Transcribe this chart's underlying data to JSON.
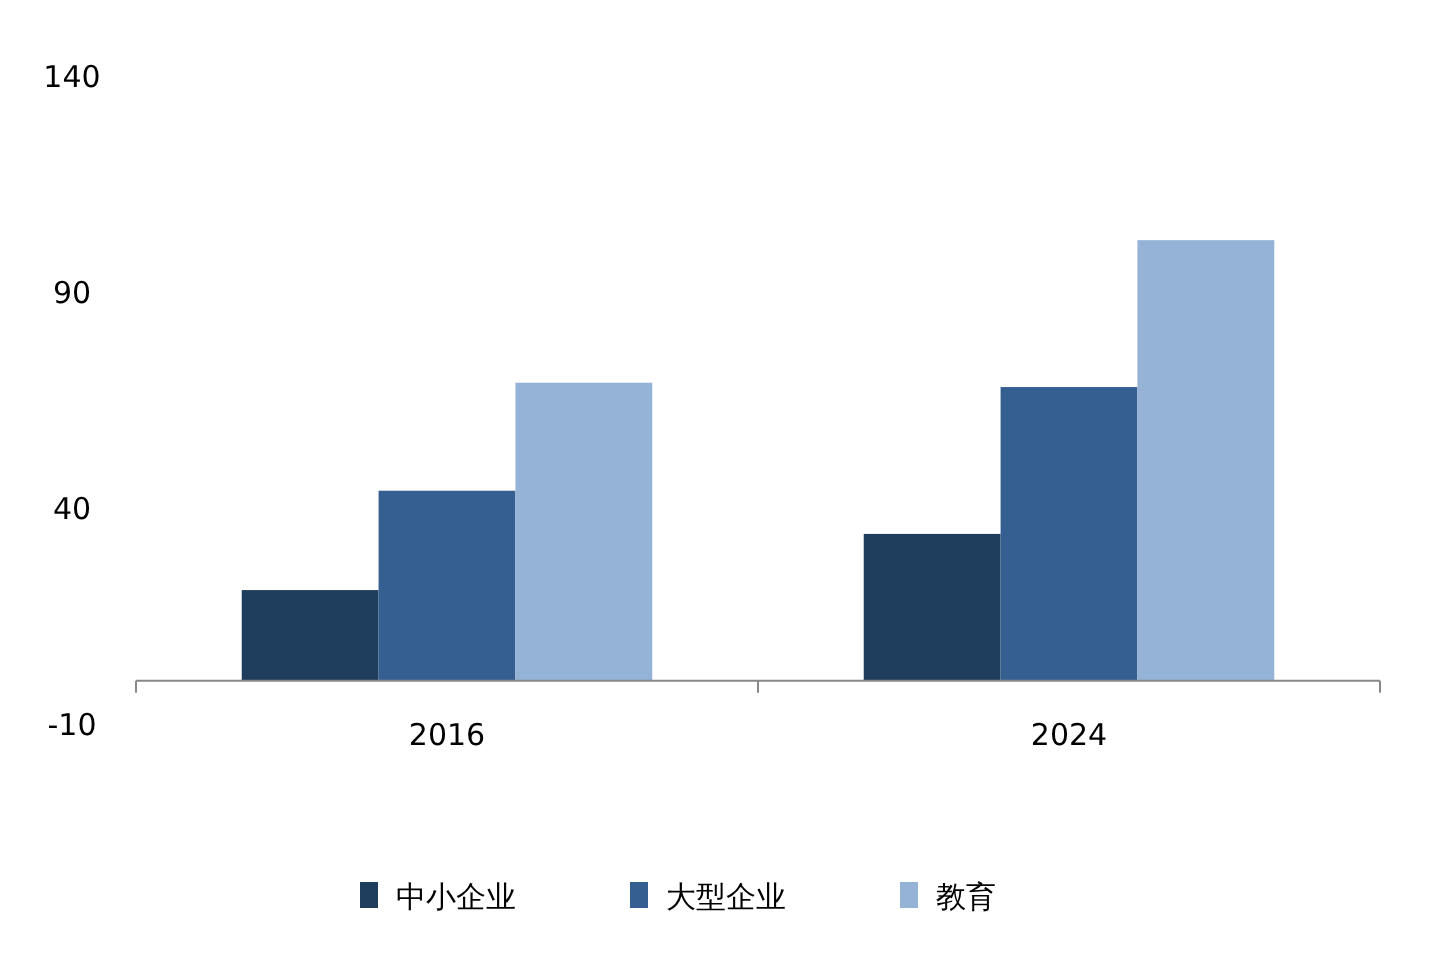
{
  "chart_data": {
    "type": "bar",
    "categories": [
      "2016",
      "2024"
    ],
    "series": [
      {
        "name": "中小企业",
        "color": "#1f3d5c",
        "values": [
          21,
          34
        ]
      },
      {
        "name": "大型企业",
        "color": "#355f91",
        "values": [
          44,
          68
        ]
      },
      {
        "name": "教育",
        "color": "#95b3d7",
        "values": [
          69,
          102
        ]
      }
    ],
    "ylim": [
      -10,
      140
    ],
    "yticks": [
      -10,
      40,
      90,
      140
    ],
    "grid": false,
    "legend": "bottom"
  }
}
